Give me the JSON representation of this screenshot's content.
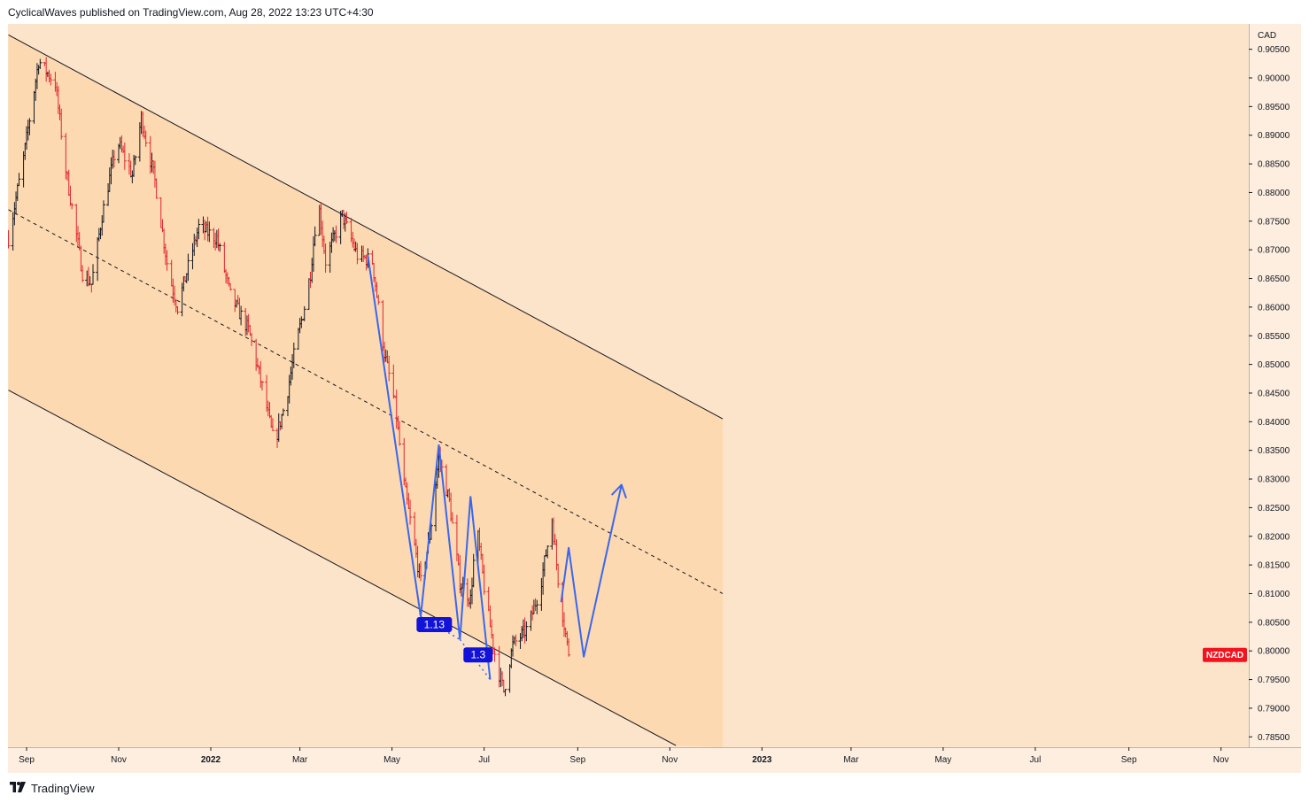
{
  "header": {
    "published_text": "CyclicalWaves published on TradingView.com, Aug 28, 2022 13:23 UTC+4:30"
  },
  "footer": {
    "brand_text": "TradingView",
    "logo_icon": "tradingview-logo-icon"
  },
  "chart_data": {
    "type": "candlestick",
    "symbol_label": "NZDCAD",
    "currency_label": "CAD",
    "last_price": 0.7993,
    "ylim": [
      0.7835,
      0.9085
    ],
    "y_ticks": [
      "0.90500",
      "0.90000",
      "0.89500",
      "0.89000",
      "0.88500",
      "0.88000",
      "0.87500",
      "0.87000",
      "0.86500",
      "0.86000",
      "0.85500",
      "0.85000",
      "0.84500",
      "0.84000",
      "0.83500",
      "0.83000",
      "0.82500",
      "0.82000",
      "0.81500",
      "0.81000",
      "0.80500",
      "0.80000",
      "0.79500",
      "0.79000",
      "0.78500"
    ],
    "x_ticks": [
      {
        "label": "Sep",
        "date": "2021-09-01"
      },
      {
        "label": "Nov",
        "date": "2021-11-01"
      },
      {
        "label": "2022",
        "date": "2022-01-01"
      },
      {
        "label": "Mar",
        "date": "2022-03-01"
      },
      {
        "label": "May",
        "date": "2022-05-01"
      },
      {
        "label": "Jul",
        "date": "2022-07-01"
      },
      {
        "label": "Sep",
        "date": "2022-09-01"
      },
      {
        "label": "Nov",
        "date": "2022-11-01"
      },
      {
        "label": "2023",
        "date": "2023-01-01"
      },
      {
        "label": "Mar",
        "date": "2023-03-01"
      },
      {
        "label": "May",
        "date": "2023-05-01"
      },
      {
        "label": "Jul",
        "date": "2023-07-01"
      },
      {
        "label": "Sep",
        "date": "2023-09-01"
      },
      {
        "label": "Nov",
        "date": "2023-11-01"
      }
    ],
    "price_path": [
      {
        "date": "2021-08-20",
        "price": 0.872
      },
      {
        "date": "2021-08-30",
        "price": 0.886
      },
      {
        "date": "2021-09-09",
        "price": 0.903
      },
      {
        "date": "2021-09-20",
        "price": 0.899
      },
      {
        "date": "2021-09-27",
        "price": 0.884
      },
      {
        "date": "2021-10-08",
        "price": 0.866
      },
      {
        "date": "2021-10-14",
        "price": 0.864
      },
      {
        "date": "2021-10-21",
        "price": 0.876
      },
      {
        "date": "2021-10-31",
        "price": 0.889
      },
      {
        "date": "2021-11-10",
        "price": 0.883
      },
      {
        "date": "2021-11-16",
        "price": 0.893
      },
      {
        "date": "2021-11-25",
        "price": 0.882
      },
      {
        "date": "2021-12-04",
        "price": 0.866
      },
      {
        "date": "2021-12-10",
        "price": 0.86
      },
      {
        "date": "2021-12-24",
        "price": 0.874
      },
      {
        "date": "2022-01-05",
        "price": 0.872
      },
      {
        "date": "2022-01-14",
        "price": 0.862
      },
      {
        "date": "2022-01-26",
        "price": 0.856
      },
      {
        "date": "2022-02-05",
        "price": 0.845
      },
      {
        "date": "2022-02-12",
        "price": 0.836
      },
      {
        "date": "2022-02-20",
        "price": 0.844
      },
      {
        "date": "2022-02-26",
        "price": 0.853
      },
      {
        "date": "2022-03-04",
        "price": 0.86
      },
      {
        "date": "2022-03-08",
        "price": 0.866
      },
      {
        "date": "2022-03-13",
        "price": 0.879
      },
      {
        "date": "2022-03-18",
        "price": 0.868
      },
      {
        "date": "2022-03-29",
        "price": 0.876
      },
      {
        "date": "2022-04-08",
        "price": 0.869
      },
      {
        "date": "2022-04-18",
        "price": 0.868
      },
      {
        "date": "2022-04-26",
        "price": 0.852
      },
      {
        "date": "2022-05-03",
        "price": 0.843
      },
      {
        "date": "2022-05-09",
        "price": 0.829
      },
      {
        "date": "2022-05-20",
        "price": 0.812
      },
      {
        "date": "2022-05-26",
        "price": 0.82
      },
      {
        "date": "2022-06-01",
        "price": 0.834
      },
      {
        "date": "2022-06-08",
        "price": 0.826
      },
      {
        "date": "2022-06-15",
        "price": 0.812
      },
      {
        "date": "2022-06-22",
        "price": 0.809
      },
      {
        "date": "2022-06-26",
        "price": 0.822
      },
      {
        "date": "2022-07-02",
        "price": 0.809
      },
      {
        "date": "2022-07-09",
        "price": 0.798
      },
      {
        "date": "2022-07-14",
        "price": 0.793
      },
      {
        "date": "2022-07-20",
        "price": 0.801
      },
      {
        "date": "2022-07-30",
        "price": 0.804
      },
      {
        "date": "2022-08-07",
        "price": 0.811
      },
      {
        "date": "2022-08-15",
        "price": 0.823
      },
      {
        "date": "2022-08-20",
        "price": 0.81
      },
      {
        "date": "2022-08-26",
        "price": 0.7993
      }
    ],
    "channel": {
      "upper": [
        {
          "date": "2021-08-20",
          "price": 0.9075
        },
        {
          "date": "2022-12-06",
          "price": 0.8405
        }
      ],
      "middle": [
        {
          "date": "2021-08-20",
          "price": 0.877
        },
        {
          "date": "2022-12-06",
          "price": 0.81
        }
      ],
      "lower": [
        {
          "date": "2021-08-20",
          "price": 0.8455
        },
        {
          "date": "2022-11-05",
          "price": 0.7835
        }
      ],
      "fill_end_date": "2022-12-06"
    },
    "wave_path": [
      {
        "date": "2022-04-15",
        "price": 0.869
      },
      {
        "date": "2022-05-20",
        "price": 0.806
      },
      {
        "date": "2022-06-01",
        "price": 0.836
      },
      {
        "date": "2022-06-15",
        "price": 0.802
      },
      {
        "date": "2022-06-22",
        "price": 0.827
      },
      {
        "date": "2022-07-05",
        "price": 0.795
      }
    ],
    "fib_labels": [
      {
        "text": "1.13",
        "date": "2022-05-29",
        "price": 0.8046
      },
      {
        "text": "1.3",
        "date": "2022-06-27",
        "price": 0.7993
      }
    ],
    "projection_path": [
      {
        "date": "2022-08-21",
        "price": 0.8085
      },
      {
        "date": "2022-08-26",
        "price": 0.818
      },
      {
        "date": "2022-09-05",
        "price": 0.799
      },
      {
        "date": "2022-09-30",
        "price": 0.829
      }
    ],
    "colors": {
      "background": "#fce4ca",
      "channel_fill": "#fcd9b1",
      "axis_bg": "#fdeedf",
      "up": "#131722",
      "down": "#e0262e",
      "wave": "#3a67ee",
      "label_bg": "#1212d8",
      "symbol_badge": "#f2131f"
    },
    "legend": "none",
    "grid": false
  }
}
